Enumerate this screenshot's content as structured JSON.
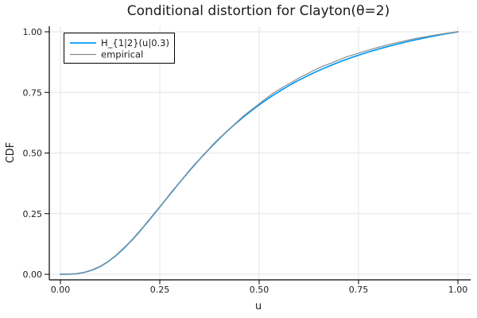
{
  "chart_data": {
    "type": "line",
    "title": "Conditional distortion for Clayton(θ=2)",
    "xlabel": "u",
    "ylabel": "CDF",
    "grid": true,
    "legend_position": "top-left",
    "xlim": [
      -0.03,
      1.03
    ],
    "ylim": [
      -0.02,
      1.02
    ],
    "xticks": {
      "values": [
        0,
        0.25,
        0.5,
        0.75,
        1.0
      ],
      "labels": [
        "0.00",
        "0.25",
        "0.50",
        "0.75",
        "1.00"
      ]
    },
    "yticks": {
      "values": [
        0,
        0.25,
        0.5,
        0.75,
        1.0
      ],
      "labels": [
        "0.00",
        "0.25",
        "0.50",
        "0.75",
        "1.00"
      ]
    },
    "x": [
      0.0,
      0.02,
      0.04,
      0.06,
      0.08,
      0.1,
      0.12,
      0.14,
      0.16,
      0.18,
      0.2,
      0.22,
      0.24,
      0.26,
      0.28,
      0.3,
      0.32,
      0.34,
      0.36,
      0.38,
      0.4,
      0.42,
      0.44,
      0.46,
      0.48,
      0.5,
      0.52,
      0.54,
      0.56,
      0.58,
      0.6,
      0.62,
      0.64,
      0.66,
      0.68,
      0.7,
      0.72,
      0.74,
      0.76,
      0.78,
      0.8,
      0.82,
      0.84,
      0.86,
      0.88,
      0.9,
      0.92,
      0.94,
      0.96,
      0.98,
      1.0
    ],
    "series": [
      {
        "name": "H_{1|2}(u|0.3)",
        "color": "#009af9",
        "line_width": 1.7,
        "values": [
          0.0,
          0.0003,
          0.0023,
          0.0076,
          0.0173,
          0.0321,
          0.0522,
          0.0775,
          0.1074,
          0.1412,
          0.178,
          0.217,
          0.2572,
          0.298,
          0.3387,
          0.3788,
          0.4179,
          0.4557,
          0.4921,
          0.5267,
          0.5597,
          0.5909,
          0.6203,
          0.6481,
          0.6741,
          0.6987,
          0.7218,
          0.7433,
          0.7636,
          0.7826,
          0.8005,
          0.8171,
          0.8328,
          0.8475,
          0.8613,
          0.8743,
          0.8865,
          0.8981,
          0.9088,
          0.919,
          0.9285,
          0.9377,
          0.9463,
          0.9543,
          0.962,
          0.9691,
          0.976,
          0.9825,
          0.9887,
          0.9945,
          1.0
        ]
      },
      {
        "name": "empirical",
        "color": "#8c8c8c",
        "line_width": 1.2,
        "values": [
          0.0,
          0.0002,
          0.002,
          0.007,
          0.018,
          0.033,
          0.051,
          0.079,
          0.11,
          0.14,
          0.176,
          0.219,
          0.259,
          0.297,
          0.341,
          0.378,
          0.42,
          0.458,
          0.49,
          0.529,
          0.562,
          0.59,
          0.622,
          0.652,
          0.678,
          0.703,
          0.729,
          0.752,
          0.772,
          0.79,
          0.81,
          0.826,
          0.843,
          0.858,
          0.87,
          0.884,
          0.897,
          0.907,
          0.917,
          0.927,
          0.936,
          0.945,
          0.953,
          0.96,
          0.968,
          0.974,
          0.98,
          0.986,
          0.991,
          0.996,
          1.0
        ]
      }
    ]
  },
  "colors": {
    "background": "#ffffff",
    "grid": "#e4e4e4",
    "spine": "#000000",
    "text": "#1c1c1c",
    "legend_border": "#000000",
    "legend_fill": "#ffffff"
  }
}
